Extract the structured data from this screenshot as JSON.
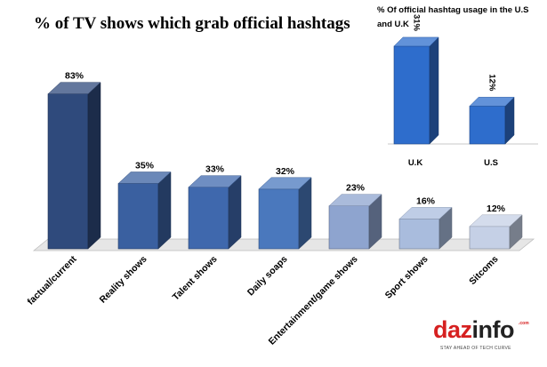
{
  "title": "% of TV shows which grab official hashtags",
  "logo": {
    "part1": "daz",
    "part2": "info",
    "com": ".com",
    "tagline": "STAY AHEAD OF TECH CURVE"
  },
  "chart_data": [
    {
      "type": "bar",
      "title": "% of TV shows which grab official hashtags",
      "categories": [
        "factual/current",
        "Reality shows",
        "Talent shows",
        "Daily soaps",
        "Entertainment/game shows",
        "Sport shows",
        "Sitcoms"
      ],
      "values": [
        83,
        35,
        33,
        32,
        23,
        16,
        12
      ],
      "value_labels": [
        "83%",
        "35%",
        "33%",
        "32%",
        "23%",
        "16%",
        "12%"
      ],
      "unit": "%",
      "colors": [
        "#2f4a7c",
        "#3a60a0",
        "#3f68ad",
        "#4a78bd",
        "#8ea4cf",
        "#a9bcdd",
        "#c5d0e6"
      ],
      "grid": false,
      "legend": "none"
    },
    {
      "type": "bar",
      "title": "% Of official hashtag usage in the U.S and U.K",
      "categories": [
        "U.K",
        "U.S"
      ],
      "values": [
        31,
        12
      ],
      "value_labels": [
        "31%",
        "12%"
      ],
      "unit": "%",
      "colors": [
        "#2e6dcc",
        "#2e6dcc"
      ],
      "grid": false,
      "legend": "none"
    }
  ]
}
